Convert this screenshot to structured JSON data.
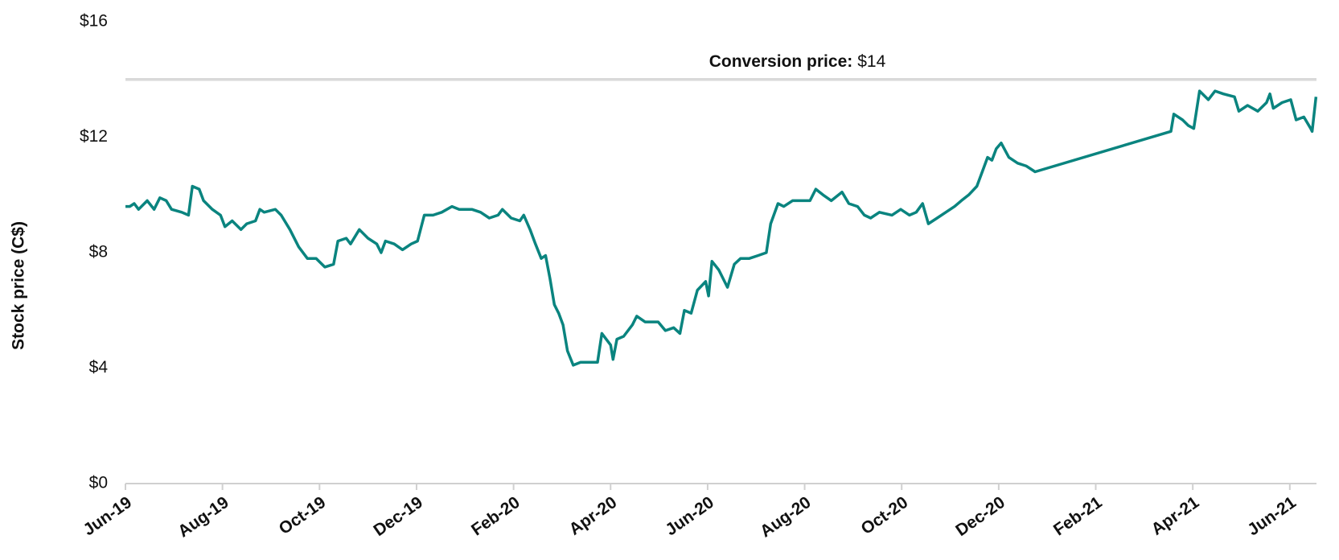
{
  "chart_data": {
    "type": "line",
    "y_label": "Stock price (C$)",
    "color": "#0a847f",
    "reference_line": {
      "value": 14,
      "label": "Conversion price:",
      "value_label": "$14",
      "color": "#d9d9d9"
    },
    "ylim": [
      0,
      16
    ],
    "yticks": [
      {
        "value": 0,
        "label": "$0"
      },
      {
        "value": 4,
        "label": "$4"
      },
      {
        "value": 8,
        "label": "$8"
      },
      {
        "value": 12,
        "label": "$12"
      },
      {
        "value": 16,
        "label": "$16"
      }
    ],
    "xlim": [
      0,
      24.55
    ],
    "xticks": [
      {
        "value": 0,
        "label": "Jun-19"
      },
      {
        "value": 2,
        "label": "Aug-19"
      },
      {
        "value": 4,
        "label": "Oct-19"
      },
      {
        "value": 6,
        "label": "Dec-19"
      },
      {
        "value": 8,
        "label": "Feb-20"
      },
      {
        "value": 10,
        "label": "Apr-20"
      },
      {
        "value": 12,
        "label": "Jun-20"
      },
      {
        "value": 14,
        "label": "Aug-20"
      },
      {
        "value": 16,
        "label": "Oct-20"
      },
      {
        "value": 18,
        "label": "Dec-20"
      },
      {
        "value": 20,
        "label": "Feb-21"
      },
      {
        "value": 22,
        "label": "Apr-21"
      },
      {
        "value": 24,
        "label": "Jun-21"
      }
    ],
    "x": [
      0,
      0.09,
      0.18,
      0.27,
      0.45,
      0.59,
      0.71,
      0.84,
      0.95,
      1.16,
      1.3,
      1.38,
      1.52,
      1.61,
      1.79,
      1.96,
      2.05,
      2.2,
      2.38,
      2.5,
      2.68,
      2.77,
      2.86,
      3.09,
      3.21,
      3.39,
      3.57,
      3.75,
      3.93,
      4.11,
      4.29,
      4.38,
      4.55,
      4.64,
      4.82,
      5,
      5.18,
      5.27,
      5.36,
      5.54,
      5.71,
      5.89,
      6.02,
      6.16,
      6.34,
      6.52,
      6.73,
      6.88,
      7.14,
      7.32,
      7.5,
      7.68,
      7.77,
      7.95,
      8.13,
      8.21,
      8.34,
      8.45,
      8.57,
      8.66,
      8.75,
      8.84,
      8.93,
      9.02,
      9.11,
      9.23,
      9.38,
      9.55,
      9.73,
      9.82,
      9.91,
      10,
      10.05,
      10.13,
      10.27,
      10.45,
      10.54,
      10.71,
      10.98,
      11.13,
      11.3,
      11.43,
      11.52,
      11.66,
      11.79,
      11.96,
      12.02,
      12.09,
      12.23,
      12.41,
      12.55,
      12.68,
      12.86,
      13.04,
      13.21,
      13.3,
      13.45,
      13.57,
      13.75,
      13.93,
      14.11,
      14.23,
      14.38,
      14.55,
      14.77,
      14.91,
      15.09,
      15.23,
      15.36,
      15.54,
      15.8,
      15.98,
      16.16,
      16.3,
      16.43,
      16.55,
      16.73,
      16.91,
      17.09,
      17.23,
      17.38,
      17.55,
      17.66,
      17.77,
      17.86,
      17.95,
      18.05,
      18.21,
      18.39,
      18.57,
      18.75,
      21.55,
      21.61,
      21.79,
      21.91,
      22.02,
      22.14,
      22.32,
      22.46,
      22.63,
      22.86,
      22.95,
      23.13,
      23.34,
      23.52,
      23.59,
      23.66,
      23.84,
      24.02,
      24.13,
      24.29,
      24.43,
      24.46,
      24.54
    ],
    "values": [
      9.6,
      9.6,
      9.7,
      9.5,
      9.8,
      9.5,
      9.9,
      9.8,
      9.5,
      9.4,
      9.3,
      10.3,
      10.2,
      9.8,
      9.5,
      9.3,
      8.9,
      9.1,
      8.8,
      9.0,
      9.1,
      9.5,
      9.4,
      9.5,
      9.3,
      8.8,
      8.2,
      7.8,
      7.8,
      7.5,
      7.6,
      8.4,
      8.5,
      8.3,
      8.8,
      8.5,
      8.3,
      8.0,
      8.4,
      8.3,
      8.1,
      8.3,
      8.4,
      9.3,
      9.3,
      9.4,
      9.6,
      9.5,
      9.5,
      9.4,
      9.2,
      9.3,
      9.5,
      9.2,
      9.1,
      9.3,
      8.8,
      8.3,
      7.8,
      7.9,
      7.1,
      6.2,
      5.9,
      5.5,
      4.6,
      4.1,
      4.2,
      4.2,
      4.2,
      5.2,
      5.0,
      4.8,
      4.3,
      5.0,
      5.1,
      5.5,
      5.8,
      5.6,
      5.6,
      5.3,
      5.4,
      5.2,
      6.0,
      5.9,
      6.7,
      7.0,
      6.5,
      7.7,
      7.4,
      6.8,
      7.6,
      7.8,
      7.8,
      7.9,
      8.0,
      9.0,
      9.7,
      9.6,
      9.8,
      9.8,
      9.8,
      10.2,
      10.0,
      9.8,
      10.1,
      9.7,
      9.6,
      9.3,
      9.2,
      9.4,
      9.3,
      9.5,
      9.3,
      9.4,
      9.7,
      9.0,
      9.2,
      9.4,
      9.6,
      9.8,
      10.0,
      10.3,
      10.8,
      11.3,
      11.2,
      11.6,
      11.8,
      11.3,
      11.1,
      11.0,
      10.8,
      12.2,
      12.8,
      12.6,
      12.4,
      12.3,
      13.6,
      13.3,
      13.6,
      13.5,
      13.4,
      12.9,
      13.1,
      12.9,
      13.2,
      13.5,
      13.0,
      13.2,
      13.3,
      12.6,
      12.7,
      12.3,
      12.2,
      13.4
    ]
  }
}
